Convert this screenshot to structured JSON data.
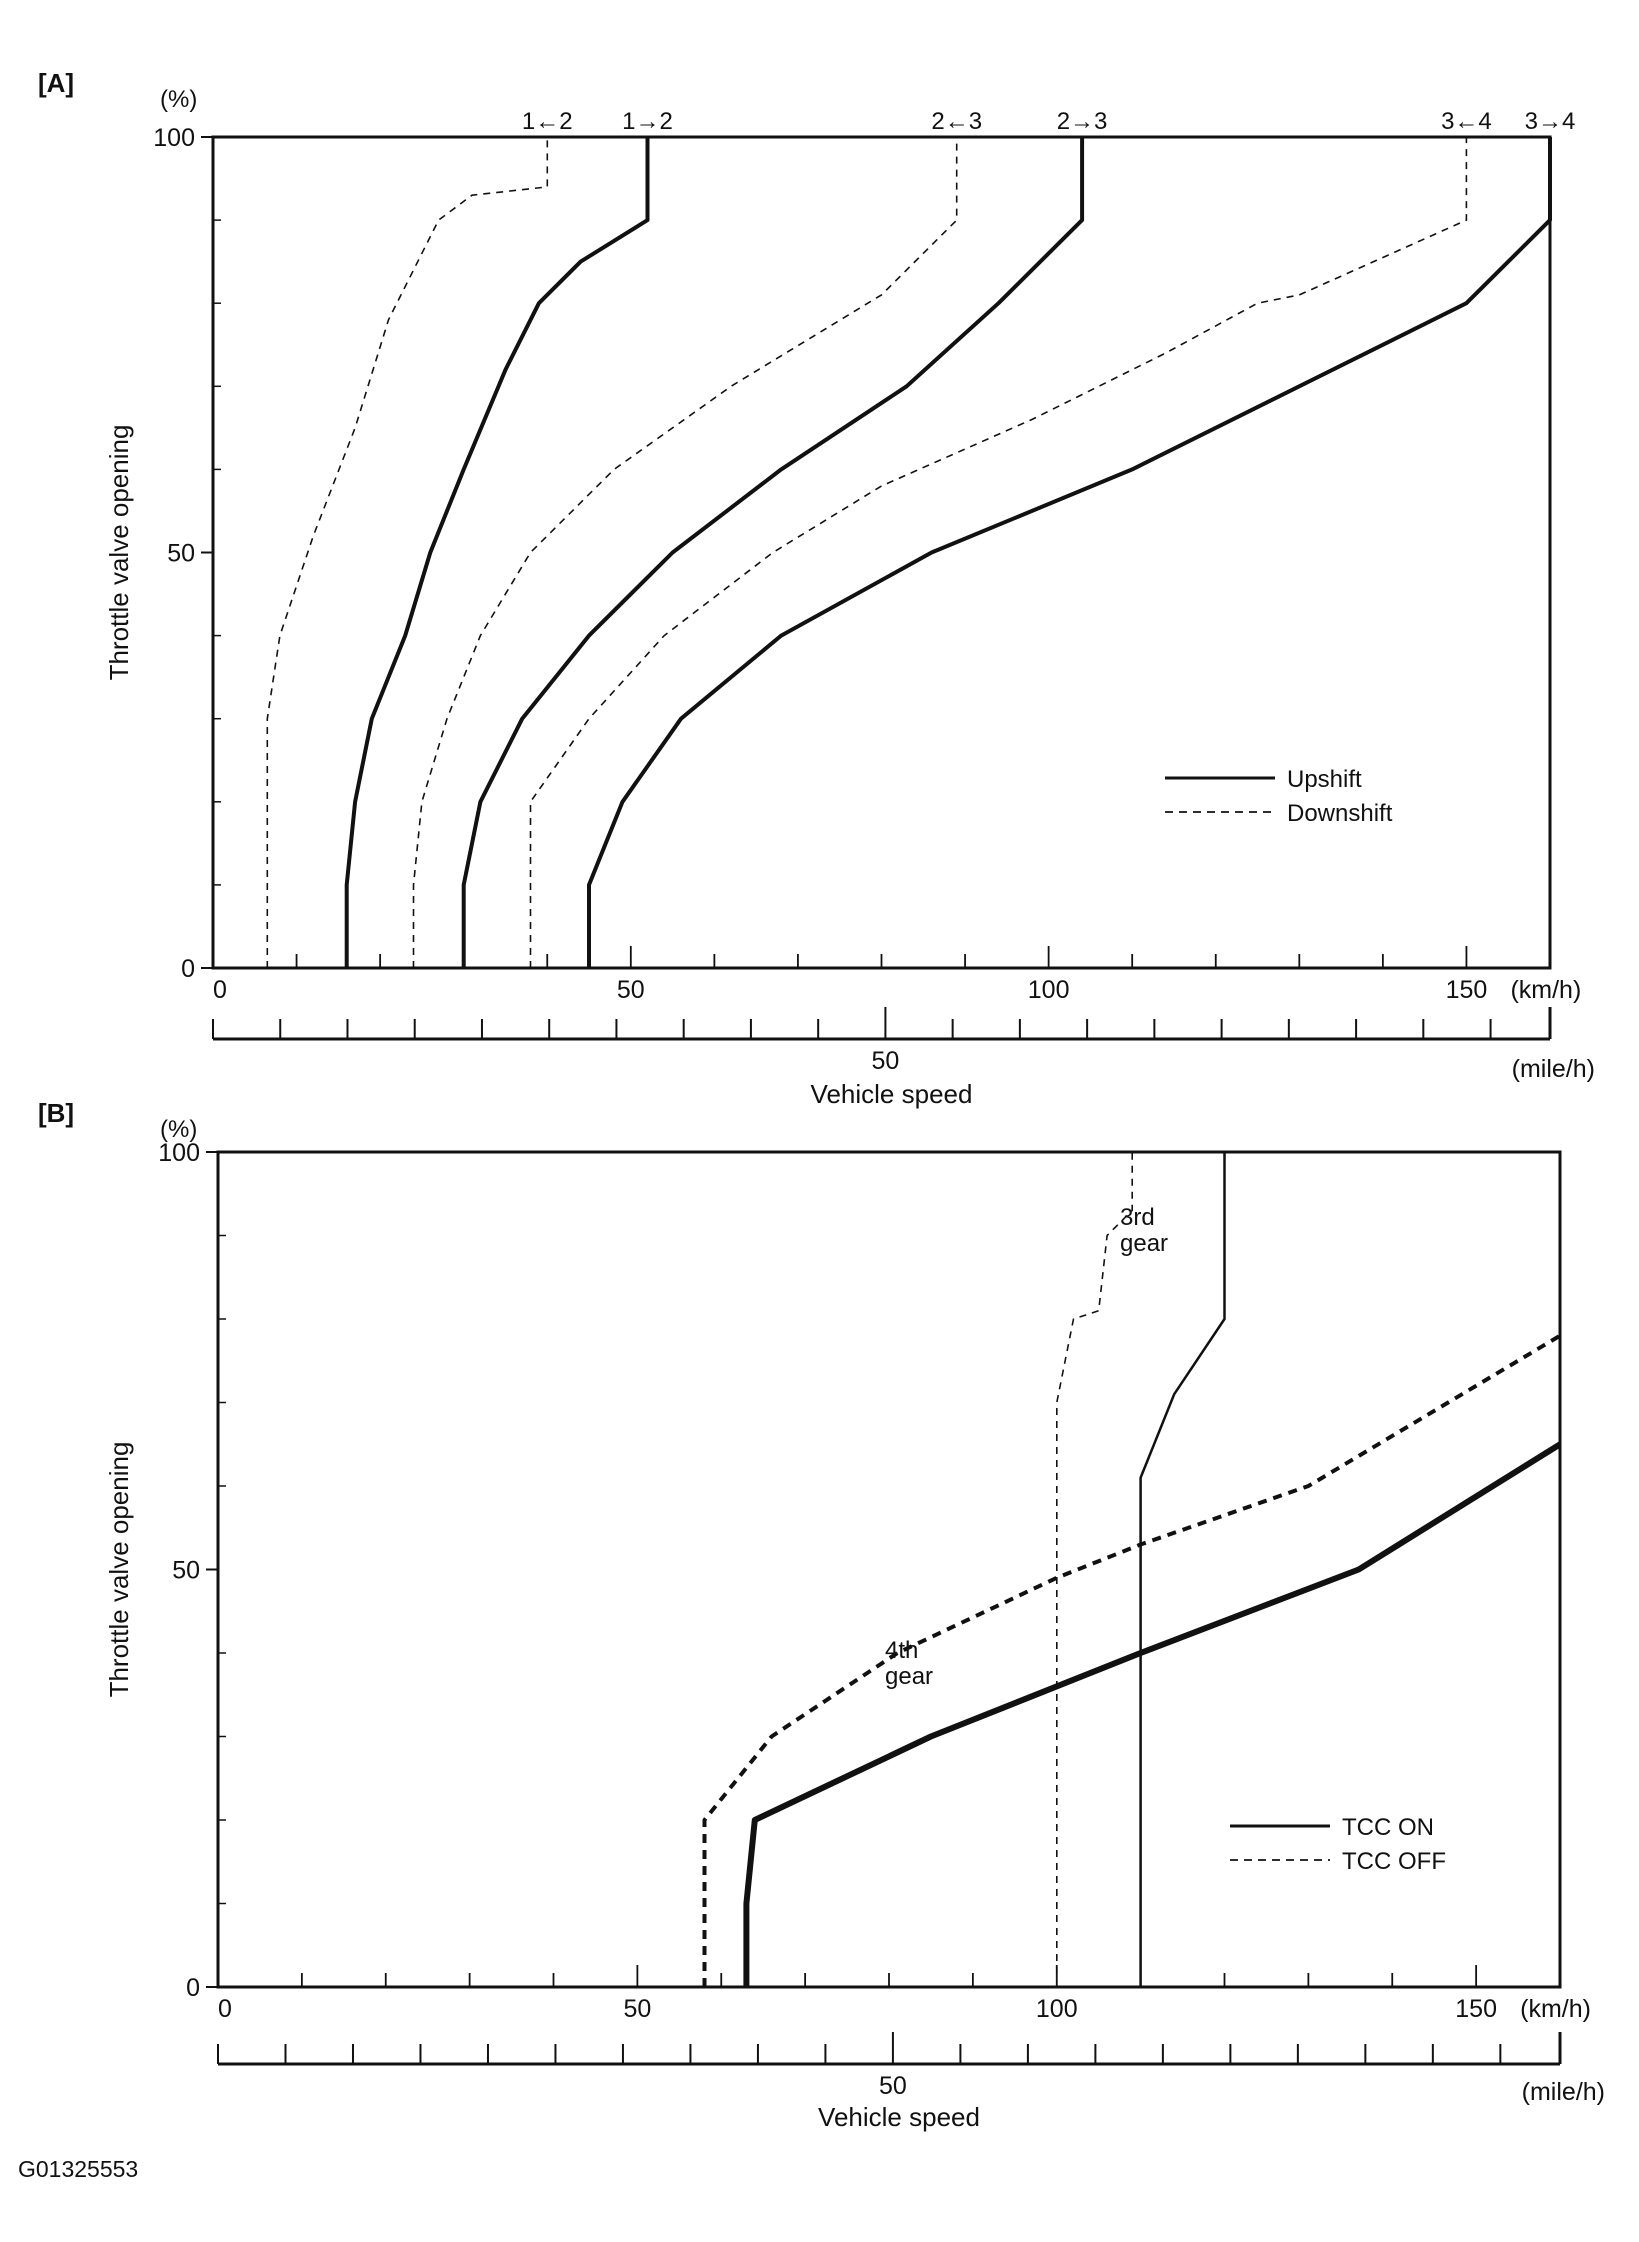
{
  "figure_code": "G01325553",
  "chart_data": [
    {
      "panel": "[A]",
      "type": "line",
      "ylabel": "Throttle valve opening",
      "yunit": "(%)",
      "xlabel": "Vehicle speed",
      "xunit_primary": "(km/h)",
      "xunit_secondary": "(mile/h)",
      "xlim": [
        0,
        160
      ],
      "ylim": [
        0,
        100
      ],
      "x_ticks": [
        0,
        50,
        100,
        150
      ],
      "y_ticks": [
        0,
        50,
        100
      ],
      "mile_ticks": [
        50
      ],
      "legend_position": "bottom-right",
      "legend": [
        {
          "label": "Upshift",
          "style": "solid"
        },
        {
          "label": "Downshift",
          "style": "dashed"
        }
      ],
      "series": [
        {
          "name": "1←2",
          "style": "dashed",
          "points": [
            [
              6.5,
              0
            ],
            [
              6.5,
              30
            ],
            [
              8,
              40
            ],
            [
              12,
              52
            ],
            [
              17,
              65
            ],
            [
              21,
              78
            ],
            [
              27,
              90
            ],
            [
              31,
              93
            ],
            [
              40,
              94
            ],
            [
              40,
              100
            ]
          ]
        },
        {
          "name": "1→2",
          "style": "solid",
          "points": [
            [
              16,
              0
            ],
            [
              16,
              10
            ],
            [
              17,
              20
            ],
            [
              19,
              30
            ],
            [
              23,
              40
            ],
            [
              26,
              50
            ],
            [
              30,
              60
            ],
            [
              35,
              72
            ],
            [
              39,
              80
            ],
            [
              44,
              85
            ],
            [
              52,
              90
            ],
            [
              52,
              100
            ]
          ]
        },
        {
          "name": "2←3",
          "style": "dashed",
          "points": [
            [
              24,
              0
            ],
            [
              24,
              10
            ],
            [
              25,
              20
            ],
            [
              28,
              30
            ],
            [
              32,
              40
            ],
            [
              38,
              50
            ],
            [
              48,
              60
            ],
            [
              62,
              70
            ],
            [
              80,
              81
            ],
            [
              89,
              90
            ],
            [
              89,
              100
            ]
          ]
        },
        {
          "name": "2→3",
          "style": "solid",
          "points": [
            [
              30,
              0
            ],
            [
              30,
              10
            ],
            [
              32,
              20
            ],
            [
              37,
              30
            ],
            [
              45,
              40
            ],
            [
              55,
              50
            ],
            [
              68,
              60
            ],
            [
              83,
              70
            ],
            [
              94,
              80
            ],
            [
              104,
              90
            ],
            [
              104,
              100
            ]
          ]
        },
        {
          "name": "3←4",
          "style": "dashed",
          "points": [
            [
              38,
              0
            ],
            [
              38,
              10
            ],
            [
              38,
              20
            ],
            [
              45,
              30
            ],
            [
              54,
              40
            ],
            [
              67,
              50
            ],
            [
              80,
              58
            ],
            [
              98,
              66
            ],
            [
              114,
              74
            ],
            [
              125,
              80
            ],
            [
              130,
              81
            ],
            [
              150,
              90
            ],
            [
              150,
              100
            ]
          ]
        },
        {
          "name": "3→4",
          "style": "solid",
          "points": [
            [
              45,
              0
            ],
            [
              45,
              10
            ],
            [
              49,
              20
            ],
            [
              56,
              30
            ],
            [
              68,
              40
            ],
            [
              86,
              50
            ],
            [
              110,
              60
            ],
            [
              130,
              70
            ],
            [
              150,
              80
            ],
            [
              160,
              90
            ],
            [
              160,
              100
            ]
          ]
        }
      ]
    },
    {
      "panel": "[B]",
      "type": "line",
      "ylabel": "Throttle valve opening",
      "yunit": "(%)",
      "xlabel": "Vehicle speed",
      "xunit_primary": "(km/h)",
      "xunit_secondary": "(mile/h)",
      "xlim": [
        0,
        160
      ],
      "ylim": [
        0,
        100
      ],
      "x_ticks": [
        0,
        50,
        100,
        150
      ],
      "y_ticks": [
        0,
        50,
        100
      ],
      "mile_ticks": [
        50
      ],
      "legend_position": "bottom-right",
      "legend": [
        {
          "label": "TCC ON",
          "style": "solid"
        },
        {
          "label": "TCC OFF",
          "style": "dashed"
        }
      ],
      "annotations": [
        "3rd\ngear",
        "4th\ngear"
      ],
      "series": [
        {
          "group": "3rd gear",
          "style": "solid",
          "points": [
            [
              110,
              0
            ],
            [
              110,
              61
            ],
            [
              114,
              71
            ],
            [
              120,
              80
            ],
            [
              120,
              100
            ]
          ]
        },
        {
          "group": "3rd gear",
          "style": "dashed",
          "points": [
            [
              100,
              0
            ],
            [
              100,
              70
            ],
            [
              102,
              80
            ],
            [
              105,
              81
            ],
            [
              106,
              90
            ],
            [
              109,
              93
            ],
            [
              109,
              100
            ]
          ]
        },
        {
          "group": "4th gear",
          "style": "solid",
          "points": [
            [
              63,
              0
            ],
            [
              63,
              10
            ],
            [
              64,
              20
            ],
            [
              85,
              30
            ],
            [
              110,
              40
            ],
            [
              136,
              50
            ],
            [
              160,
              65
            ]
          ]
        },
        {
          "group": "4th gear",
          "style": "dashed",
          "points": [
            [
              58,
              0
            ],
            [
              58,
              20
            ],
            [
              66,
              30
            ],
            [
              81,
              40
            ],
            [
              100,
              49
            ],
            [
              110,
              53
            ],
            [
              130,
              60
            ],
            [
              160,
              78
            ]
          ]
        }
      ]
    }
  ]
}
